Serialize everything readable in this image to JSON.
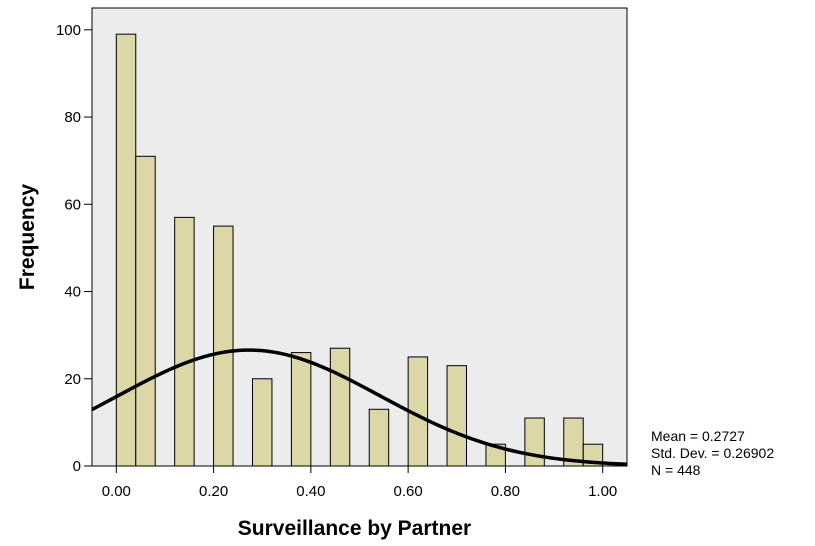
{
  "chart_data": {
    "type": "bar",
    "subtype": "histogram-with-normal-curve",
    "xlabel": "Surveillance by Partner",
    "ylabel": "Frequency",
    "xlim": [
      -0.05,
      1.05
    ],
    "ylim": [
      0,
      105
    ],
    "xticks": [
      0,
      0.2,
      0.4,
      0.6,
      0.8,
      1.0
    ],
    "xtick_labels": [
      "0.00",
      "0.20",
      "0.40",
      "0.60",
      "0.80",
      "1.00"
    ],
    "yticks": [
      0,
      20,
      40,
      60,
      80,
      100
    ],
    "ytick_labels": [
      "0",
      "20",
      "40",
      "60",
      "80",
      "100"
    ],
    "bin_width": 0.04,
    "bins": [
      {
        "x": 0.02,
        "value": 99
      },
      {
        "x": 0.06,
        "value": 71
      },
      {
        "x": 0.14,
        "value": 57
      },
      {
        "x": 0.22,
        "value": 55
      },
      {
        "x": 0.3,
        "value": 20
      },
      {
        "x": 0.38,
        "value": 26
      },
      {
        "x": 0.46,
        "value": 27
      },
      {
        "x": 0.54,
        "value": 13
      },
      {
        "x": 0.62,
        "value": 25
      },
      {
        "x": 0.7,
        "value": 23
      },
      {
        "x": 0.78,
        "value": 5
      },
      {
        "x": 0.86,
        "value": 11
      },
      {
        "x": 0.94,
        "value": 11
      },
      {
        "x": 0.98,
        "value": 5
      }
    ],
    "normal_curve": {
      "mean": 0.2727,
      "std": 0.26902,
      "n": 448
    },
    "grid": false,
    "colors": {
      "bar_fill": "#dcd7a6",
      "bar_stroke": "#000000",
      "plot_bg": "#ececec",
      "curve": "#000000"
    }
  },
  "stats": {
    "mean": "Mean = 0.2727",
    "std": "Std. Dev. = 0.26902",
    "n": "N = 448"
  }
}
